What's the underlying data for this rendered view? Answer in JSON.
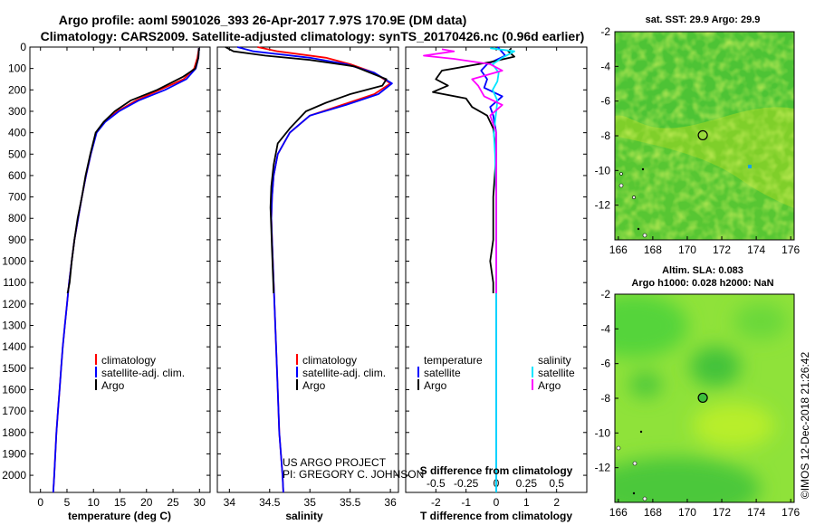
{
  "header": {
    "title_line1": "Argo profile: aoml 5901026_393 26-Apr-2017 7.97S 170.9E (DM data)",
    "title_line2": "Climatology: CARS2009. Satellite-adjusted climatology: synTS_20170426.nc (0.96d earlier)"
  },
  "colors": {
    "climatology": "#ff0000",
    "satellite": "#0000ff",
    "argo": "#000000",
    "salinity_satellite": "#00e5ff",
    "salinity_argo": "#ff00ff"
  },
  "chart_data": [
    {
      "type": "line",
      "name": "temperature-panel",
      "xlabel": "temperature (deg C)",
      "ylabel": "",
      "xlim": [
        -2,
        32
      ],
      "ylim": [
        2080,
        0
      ],
      "xticks": [
        "0",
        "5",
        "10",
        "15",
        "20",
        "25",
        "30"
      ],
      "xtick_values": [
        0,
        5,
        10,
        15,
        20,
        25,
        30
      ],
      "yticks": [
        "0",
        "100",
        "200",
        "300",
        "400",
        "500",
        "600",
        "700",
        "800",
        "900",
        "1000",
        "1100",
        "1200",
        "1300",
        "1400",
        "1500",
        "1600",
        "1700",
        "1800",
        "1900",
        "2000"
      ],
      "ytick_values": [
        0,
        100,
        200,
        300,
        400,
        500,
        600,
        700,
        800,
        900,
        1000,
        1100,
        1200,
        1300,
        1400,
        1500,
        1600,
        1700,
        1800,
        1900,
        2000
      ],
      "legend": [
        "climatology",
        "satellite-adj. clim.",
        "Argo"
      ],
      "series": [
        {
          "name": "climatology",
          "color": "#ff0000",
          "points": [
            [
              29.9,
              5
            ],
            [
              29.6,
              50
            ],
            [
              29.0,
              100
            ],
            [
              27.0,
              150
            ],
            [
              22.5,
              200
            ],
            [
              18.0,
              250
            ],
            [
              14.5,
              300
            ],
            [
              12.0,
              350
            ],
            [
              10.5,
              400
            ],
            [
              9.5,
              500
            ],
            [
              8.6,
              600
            ],
            [
              7.8,
              700
            ],
            [
              7.1,
              800
            ],
            [
              6.4,
              900
            ],
            [
              5.9,
              1000
            ],
            [
              5.4,
              1100
            ],
            [
              5.0,
              1200
            ],
            [
              4.6,
              1300
            ],
            [
              4.2,
              1400
            ],
            [
              3.9,
              1500
            ],
            [
              3.6,
              1600
            ],
            [
              3.3,
              1700
            ],
            [
              3.0,
              1800
            ],
            [
              2.8,
              1900
            ],
            [
              2.6,
              2000
            ],
            [
              2.4,
              2080
            ]
          ]
        },
        {
          "name": "satellite-adj. clim.",
          "color": "#0000ff",
          "points": [
            [
              29.9,
              5
            ],
            [
              29.8,
              50
            ],
            [
              29.3,
              100
            ],
            [
              27.5,
              150
            ],
            [
              23.5,
              200
            ],
            [
              18.5,
              250
            ],
            [
              14.8,
              300
            ],
            [
              12.2,
              350
            ],
            [
              10.6,
              400
            ],
            [
              9.5,
              500
            ],
            [
              8.6,
              600
            ],
            [
              7.8,
              700
            ],
            [
              7.1,
              800
            ],
            [
              6.4,
              900
            ],
            [
              5.9,
              1000
            ],
            [
              5.4,
              1100
            ],
            [
              5.0,
              1200
            ],
            [
              4.6,
              1300
            ],
            [
              4.2,
              1400
            ],
            [
              3.9,
              1500
            ],
            [
              3.6,
              1600
            ],
            [
              3.3,
              1700
            ],
            [
              3.0,
              1800
            ],
            [
              2.8,
              1900
            ],
            [
              2.6,
              2000
            ],
            [
              2.4,
              2080
            ]
          ]
        },
        {
          "name": "Argo",
          "color": "#000000",
          "points": [
            [
              29.9,
              5
            ],
            [
              29.8,
              50
            ],
            [
              29.2,
              100
            ],
            [
              26.8,
              140
            ],
            [
              22.0,
              200
            ],
            [
              17.0,
              250
            ],
            [
              14.0,
              300
            ],
            [
              11.9,
              350
            ],
            [
              10.4,
              400
            ],
            [
              9.4,
              500
            ],
            [
              8.5,
              600
            ],
            [
              7.8,
              700
            ],
            [
              7.0,
              800
            ],
            [
              6.4,
              900
            ],
            [
              5.9,
              1000
            ],
            [
              5.5,
              1100
            ],
            [
              5.1,
              1150
            ]
          ]
        }
      ]
    },
    {
      "type": "line",
      "name": "salinity-panel",
      "xlabel": "salinity",
      "xlim": [
        33.85,
        36.1
      ],
      "ylim": [
        2080,
        0
      ],
      "xticks": [
        "34",
        "34.5",
        "35",
        "35.5",
        "36"
      ],
      "xtick_values": [
        34,
        34.5,
        35,
        35.5,
        36
      ],
      "legend": [
        "climatology",
        "satellite-adj. clim.",
        "Argo"
      ],
      "series": [
        {
          "name": "climatology",
          "color": "#ff0000",
          "points": [
            [
              34.35,
              0
            ],
            [
              34.6,
              20
            ],
            [
              35.2,
              50
            ],
            [
              35.5,
              80
            ],
            [
              35.8,
              120
            ],
            [
              36.0,
              170
            ],
            [
              35.8,
              220
            ],
            [
              35.4,
              270
            ],
            [
              35.0,
              320
            ],
            [
              34.75,
              400
            ],
            [
              34.6,
              500
            ],
            [
              34.55,
              600
            ],
            [
              34.53,
              700
            ],
            [
              34.52,
              800
            ],
            [
              34.53,
              900
            ],
            [
              34.54,
              1000
            ],
            [
              34.56,
              1200
            ],
            [
              34.58,
              1400
            ],
            [
              34.6,
              1600
            ],
            [
              34.62,
              1800
            ],
            [
              34.64,
              1900
            ],
            [
              34.66,
              2000
            ],
            [
              34.67,
              2080
            ]
          ]
        },
        {
          "name": "satellite-adj. clim.",
          "color": "#0000ff",
          "points": [
            [
              34.1,
              0
            ],
            [
              34.3,
              20
            ],
            [
              35.0,
              50
            ],
            [
              35.45,
              80
            ],
            [
              35.8,
              120
            ],
            [
              36.02,
              170
            ],
            [
              35.85,
              220
            ],
            [
              35.45,
              270
            ],
            [
              35.0,
              320
            ],
            [
              34.75,
              400
            ],
            [
              34.6,
              500
            ],
            [
              34.55,
              600
            ],
            [
              34.53,
              700
            ],
            [
              34.52,
              800
            ],
            [
              34.53,
              900
            ],
            [
              34.54,
              1000
            ],
            [
              34.56,
              1200
            ],
            [
              34.58,
              1400
            ],
            [
              34.6,
              1600
            ],
            [
              34.62,
              1800
            ],
            [
              34.64,
              1900
            ],
            [
              34.66,
              2000
            ],
            [
              34.67,
              2080
            ]
          ]
        },
        {
          "name": "Argo",
          "color": "#000000",
          "points": [
            [
              33.95,
              0
            ],
            [
              34.05,
              20
            ],
            [
              34.45,
              40
            ],
            [
              35.0,
              60
            ],
            [
              35.55,
              90
            ],
            [
              35.95,
              150
            ],
            [
              35.9,
              180
            ],
            [
              35.5,
              220
            ],
            [
              35.2,
              260
            ],
            [
              34.95,
              300
            ],
            [
              34.75,
              380
            ],
            [
              34.6,
              450
            ],
            [
              34.55,
              550
            ],
            [
              34.52,
              650
            ],
            [
              34.51,
              750
            ],
            [
              34.52,
              850
            ],
            [
              34.53,
              950
            ],
            [
              34.54,
              1050
            ],
            [
              34.55,
              1150
            ]
          ]
        }
      ]
    },
    {
      "type": "line",
      "name": "difference-panel",
      "xlabel": "T difference from climatology",
      "xlabel_top": "S difference from climatology",
      "xlim": [
        -3,
        3
      ],
      "ylim": [
        2080,
        0
      ],
      "xticks": [
        "-2",
        "-1",
        "0",
        "1",
        "2"
      ],
      "xtick_values": [
        -2,
        -1,
        0,
        1,
        2
      ],
      "sticks": [
        "-0.5",
        "-0.25",
        "0",
        "0.25",
        "0.5"
      ],
      "stick_values": [
        -0.5,
        -0.25,
        0,
        0.25,
        0.5
      ],
      "legend_left_title": "temperature",
      "legend_right_title": "salinity",
      "legend_left": [
        "satellite",
        "Argo"
      ],
      "legend_right": [
        "satellite",
        "Argo"
      ],
      "series": [
        {
          "name": "T satellite",
          "color": "#0000ff",
          "points": [
            [
              0.05,
              0
            ],
            [
              0.3,
              40
            ],
            [
              -0.3,
              80
            ],
            [
              -0.5,
              110
            ],
            [
              -0.3,
              150
            ],
            [
              -0.4,
              190
            ],
            [
              0.2,
              230
            ],
            [
              -0.2,
              280
            ],
            [
              -0.1,
              320
            ],
            [
              0,
              400
            ],
            [
              0,
              600
            ],
            [
              0,
              900
            ],
            [
              0,
              1200
            ],
            [
              0,
              1500
            ],
            [
              0,
              2080
            ]
          ]
        },
        {
          "name": "T Argo",
          "color": "#000000",
          "points": [
            [
              0.5,
              5
            ],
            [
              0.4,
              20
            ],
            [
              0.6,
              45
            ],
            [
              -0.2,
              70
            ],
            [
              -1.8,
              110
            ],
            [
              -2.0,
              150
            ],
            [
              -1.6,
              180
            ],
            [
              -2.1,
              210
            ],
            [
              -1.0,
              240
            ],
            [
              -0.8,
              280
            ],
            [
              -0.3,
              320
            ],
            [
              -0.1,
              380
            ],
            [
              0,
              500
            ],
            [
              -0.1,
              700
            ],
            [
              -0.1,
              900
            ],
            [
              -0.2,
              1000
            ],
            [
              -0.1,
              1100
            ],
            [
              -0.1,
              1150
            ]
          ]
        },
        {
          "name": "S satellite",
          "color": "#00e5ff",
          "points": [
            [
              -0.05,
              5
            ],
            [
              0.15,
              20
            ],
            [
              0.05,
              50
            ],
            [
              -0.03,
              80
            ],
            [
              0.02,
              120
            ],
            [
              0.01,
              160
            ],
            [
              -0.03,
              200
            ],
            [
              0.01,
              250
            ],
            [
              0,
              300
            ],
            [
              -0.02,
              400
            ],
            [
              -0.01,
              500
            ],
            [
              0,
              700
            ],
            [
              0,
              1000
            ],
            [
              0,
              1500
            ],
            [
              0,
              2080
            ]
          ]
        },
        {
          "name": "S Argo",
          "color": "#ff00ff",
          "points": [
            [
              -0.45,
              10
            ],
            [
              -0.35,
              20
            ],
            [
              -0.6,
              40
            ],
            [
              -0.35,
              55
            ],
            [
              -0.05,
              80
            ],
            [
              0.05,
              110
            ],
            [
              -0.2,
              150
            ],
            [
              -0.15,
              180
            ],
            [
              -0.1,
              230
            ],
            [
              0.05,
              270
            ],
            [
              -0.05,
              320
            ],
            [
              0,
              400
            ],
            [
              0,
              600
            ],
            [
              0,
              800
            ],
            [
              0,
              1000
            ],
            [
              0,
              1150
            ]
          ]
        }
      ]
    }
  ],
  "credit": {
    "line1": "US ARGO PROJECT",
    "line2": "PI: GREGORY C. JOHNSON"
  },
  "maps": {
    "sst": {
      "title": "sat. SST: 29.9 Argo: 29.9",
      "xticks": [
        "166",
        "168",
        "170",
        "172",
        "174",
        "176"
      ],
      "yticks": [
        "-2",
        "-4",
        "-6",
        "-8",
        "-10",
        "-12"
      ],
      "lon_range": [
        165.8,
        176.2
      ],
      "lat_range": [
        -14,
        -2
      ],
      "marker": {
        "lon": 170.9,
        "lat": -7.97
      }
    },
    "sla": {
      "title_line1": "Altim. SLA: 0.083",
      "title_line2": "Argo h1000: 0.028 h2000: NaN",
      "xticks": [
        "166",
        "168",
        "170",
        "172",
        "174",
        "176"
      ],
      "yticks": [
        "-2",
        "-4",
        "-6",
        "-8",
        "-10",
        "-12"
      ],
      "lon_range": [
        165.8,
        176.2
      ],
      "lat_range": [
        -14,
        -2
      ],
      "marker": {
        "lon": 170.9,
        "lat": -7.97
      }
    },
    "stamp": "©IMOS 12-Dec-2018 21:26:42"
  }
}
